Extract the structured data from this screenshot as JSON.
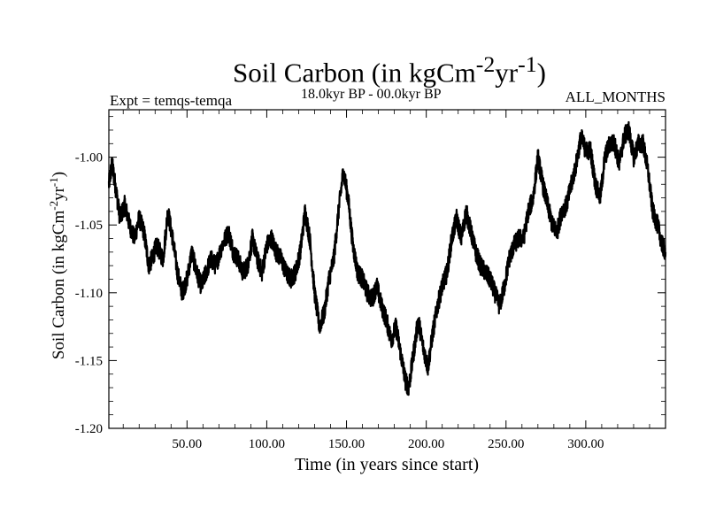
{
  "chart_data": {
    "type": "line",
    "title": "Soil Carbon (in kgCm",
    "title_sup1": "-2",
    "title_mid": "yr",
    "title_sup2": "-1",
    "title_end": ")",
    "subtitle_left": "Expt = temqs-temqa",
    "subtitle_center": "18.0kyr BP - 00.0kyr BP",
    "subtitle_right": "ALL_MONTHS",
    "xlabel": "Time (in years since start)",
    "ylabel": "Soil Carbon (in kgCm",
    "ylabel_sup1": "-2",
    "ylabel_mid": "yr",
    "ylabel_sup2": "-1",
    "ylabel_end": ")",
    "xlim": [
      1,
      350
    ],
    "ylim": [
      -1.2,
      -0.965
    ],
    "x_ticks": [
      {
        "value": 50,
        "label": "50.00"
      },
      {
        "value": 100,
        "label": "100.00"
      },
      {
        "value": 150,
        "label": "150.00"
      },
      {
        "value": 200,
        "label": "200.00"
      },
      {
        "value": 250,
        "label": "250.00"
      },
      {
        "value": 300,
        "label": "300.00"
      }
    ],
    "y_ticks": [
      {
        "value": -1.2,
        "label": "-1.20"
      },
      {
        "value": -1.15,
        "label": "-1.15"
      },
      {
        "value": -1.1,
        "label": "-1.10"
      },
      {
        "value": -1.05,
        "label": "-1.05"
      },
      {
        "value": -1.0,
        "label": "-1.00"
      }
    ],
    "series": [
      {
        "name": "temqs-temqa",
        "color": "#000000",
        "x": [
          1,
          3,
          5,
          8,
          11,
          14,
          17,
          20,
          23,
          26,
          28,
          31,
          35,
          38,
          41,
          44,
          47,
          50,
          53,
          56,
          59,
          62,
          65,
          68,
          72,
          76,
          79,
          82,
          85,
          88,
          91,
          94,
          97,
          100,
          103,
          106,
          109,
          112,
          115,
          118,
          121,
          124,
          127,
          130,
          133,
          136,
          139,
          142,
          145,
          148,
          151,
          154,
          157,
          160,
          163,
          166,
          169,
          172,
          175,
          178,
          181,
          184,
          187,
          189,
          192,
          195,
          198,
          201,
          204,
          207,
          210,
          213,
          216,
          219,
          222,
          225,
          228,
          231,
          234,
          237,
          240,
          243,
          246,
          249,
          252,
          255,
          258,
          261,
          264,
          267,
          270,
          273,
          276,
          279,
          282,
          285,
          288,
          291,
          294,
          297,
          300,
          303,
          306,
          309,
          312,
          315,
          318,
          321,
          324,
          327,
          330,
          333,
          336,
          339,
          342,
          345,
          348,
          350
        ],
        "y": [
          -1.02,
          -1.005,
          -1.02,
          -1.045,
          -1.035,
          -1.05,
          -1.06,
          -1.045,
          -1.055,
          -1.08,
          -1.075,
          -1.065,
          -1.075,
          -1.04,
          -1.06,
          -1.085,
          -1.1,
          -1.09,
          -1.07,
          -1.085,
          -1.095,
          -1.085,
          -1.075,
          -1.08,
          -1.065,
          -1.055,
          -1.07,
          -1.075,
          -1.085,
          -1.08,
          -1.06,
          -1.075,
          -1.085,
          -1.065,
          -1.06,
          -1.07,
          -1.075,
          -1.085,
          -1.09,
          -1.085,
          -1.07,
          -1.04,
          -1.06,
          -1.1,
          -1.125,
          -1.115,
          -1.09,
          -1.075,
          -1.04,
          -1.01,
          -1.03,
          -1.065,
          -1.085,
          -1.09,
          -1.1,
          -1.105,
          -1.095,
          -1.11,
          -1.12,
          -1.135,
          -1.125,
          -1.145,
          -1.165,
          -1.17,
          -1.145,
          -1.12,
          -1.14,
          -1.155,
          -1.13,
          -1.11,
          -1.095,
          -1.085,
          -1.06,
          -1.045,
          -1.06,
          -1.04,
          -1.055,
          -1.07,
          -1.08,
          -1.085,
          -1.09,
          -1.1,
          -1.11,
          -1.095,
          -1.075,
          -1.065,
          -1.06,
          -1.06,
          -1.04,
          -1.03,
          -1.0,
          -1.02,
          -1.035,
          -1.05,
          -1.055,
          -1.04,
          -1.035,
          -1.02,
          -1.005,
          -0.985,
          -0.995,
          -0.995,
          -1.02,
          -1.03,
          -1.0,
          -0.99,
          -0.99,
          -1.005,
          -0.985,
          -0.98,
          -1.0,
          -0.99,
          -0.99,
          -1.01,
          -1.04,
          -1.05,
          -1.065,
          -1.07
        ]
      }
    ]
  }
}
